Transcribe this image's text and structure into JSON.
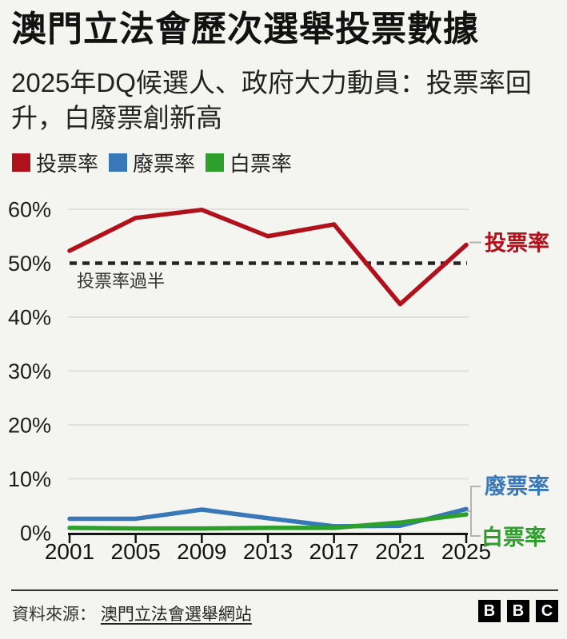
{
  "header": {
    "title": "澳門立法會歷次選舉投票數據",
    "subtitle": "2025年DQ候選人、政府大力動員：投票率回升，白廢票創新高"
  },
  "legend": [
    {
      "label": "投票率",
      "color": "#b0111b"
    },
    {
      "label": "廢票率",
      "color": "#3878b8"
    },
    {
      "label": "白票率",
      "color": "#2da02c"
    }
  ],
  "chart_data": {
    "type": "line",
    "title": "澳門立法會歷次選舉投票數據",
    "categories": [
      "2001",
      "2005",
      "2009",
      "2013",
      "2017",
      "2021",
      "2025"
    ],
    "series": [
      {
        "name": "投票率",
        "color": "#b0111b",
        "values": [
          52.3,
          58.4,
          59.9,
          55.0,
          57.2,
          42.4,
          53.4
        ]
      },
      {
        "name": "廢票率",
        "color": "#3878b8",
        "values": [
          2.6,
          2.6,
          4.3,
          2.7,
          1.2,
          1.3,
          4.4
        ]
      },
      {
        "name": "白票率",
        "color": "#2da02c",
        "values": [
          0.9,
          0.8,
          0.8,
          0.9,
          0.9,
          1.9,
          3.4
        ]
      }
    ],
    "ylim": [
      0,
      60
    ],
    "yticks": [
      0,
      10,
      20,
      30,
      40,
      50,
      60
    ],
    "ytick_suffix": "%",
    "grid": true,
    "legend_position": "top",
    "reference_line": {
      "value": 50,
      "label": "投票率過半",
      "style": "dotted",
      "color": "#262626"
    },
    "end_labels": true,
    "colors": {
      "gridline": "#e0e0de",
      "axis": "#141414",
      "connector": "#b3b3b3",
      "annotation_text": "#333333"
    }
  },
  "footer": {
    "source_label": "資料來源：",
    "source_link": "澳門立法會選舉網站",
    "logo_letters": [
      "B",
      "B",
      "C"
    ]
  }
}
